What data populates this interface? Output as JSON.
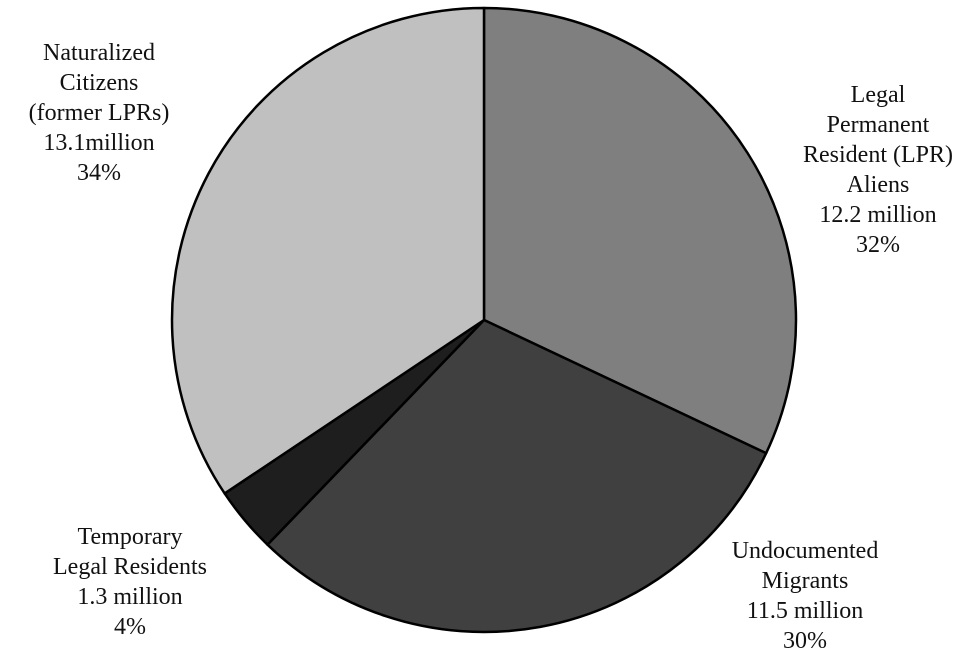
{
  "chart_data": {
    "type": "pie",
    "title": "",
    "slices": [
      {
        "name": "Legal Permanent Resident (LPR) Aliens",
        "label_lines": [
          "Legal",
          "Permanent",
          "Resident (LPR)",
          "Aliens"
        ],
        "value_text": "12.2 million",
        "value": 12.2,
        "percent": 32,
        "percent_text": "32%",
        "color": "#7f7f7f"
      },
      {
        "name": "Undocumented Migrants",
        "label_lines": [
          "Undocumented",
          "Migrants"
        ],
        "value_text": "11.5 million",
        "value": 11.5,
        "percent": 30,
        "percent_text": "30%",
        "color": "#404040"
      },
      {
        "name": "Temporary Legal Residents",
        "label_lines": [
          "Temporary",
          "Legal Residents"
        ],
        "value_text": "1.3 million",
        "value": 1.3,
        "percent": 4,
        "percent_text": "4%",
        "color": "#1e1e1e"
      },
      {
        "name": "Naturalized Citizens (former LPRs)",
        "label_lines": [
          "Naturalized",
          "Citizens",
          "(former LPRs)"
        ],
        "value_text": "13.1million",
        "value": 13.1,
        "percent": 34,
        "percent_text": "34%",
        "color": "#c0c0c0"
      }
    ]
  }
}
